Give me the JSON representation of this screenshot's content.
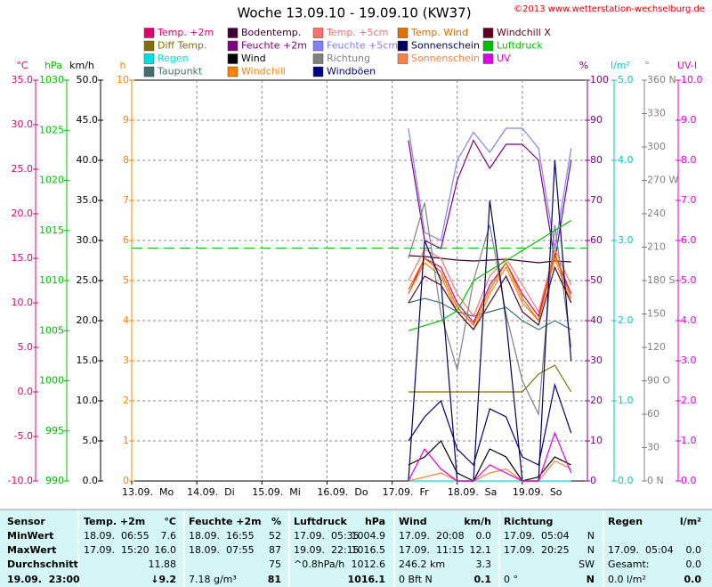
{
  "chart_data": {
    "type": "line",
    "title": "Woche 13.09.10 - 19.09.10 (KW37)",
    "copyright": "©2013 www.wetterstation-wechselburg.de",
    "xlim": [
      0,
      168
    ],
    "xticks": [
      {
        "value": 0,
        "label": "13.09.  Mo"
      },
      {
        "value": 24,
        "label": "14.09.  Di"
      },
      {
        "value": 48,
        "label": "15.09.  Mi"
      },
      {
        "value": 72,
        "label": "16.09.  Do"
      },
      {
        "value": 96,
        "label": "17.09.  Fr"
      },
      {
        "value": 120,
        "label": "18.09.  Sa"
      },
      {
        "value": 144,
        "label": "19.09.  So"
      }
    ],
    "grid": true,
    "grid_axis": "y4",
    "y_axes": [
      {
        "id": "y1",
        "label": "°C",
        "color": "#e0007a",
        "ylim": [
          -10,
          35
        ],
        "yticks": [
          {
            "value": -10,
            "label": "-10.0"
          },
          {
            "value": -5,
            "label": "-5.0"
          },
          {
            "value": 0,
            "label": "0.0"
          },
          {
            "value": 5,
            "label": "5.0"
          },
          {
            "value": 10,
            "label": "10.0"
          },
          {
            "value": 15,
            "label": "15.0"
          },
          {
            "value": 20,
            "label": "20.0"
          },
          {
            "value": 25,
            "label": "25.0"
          },
          {
            "value": 30,
            "label": "30.0"
          },
          {
            "value": 35,
            "label": "35.0"
          }
        ]
      },
      {
        "id": "y2",
        "label": "hPa",
        "color": "#00c000",
        "ylim": [
          990,
          1030
        ],
        "yticks": [
          990,
          995,
          1000,
          1005,
          1010,
          1015,
          1020,
          1025,
          1030
        ]
      },
      {
        "id": "y3",
        "label": "km/h",
        "color": "#000000",
        "ylim": [
          0,
          50
        ],
        "yticks": [
          {
            "value": 0,
            "label": "0.0"
          },
          {
            "value": 5,
            "label": "5.0"
          },
          {
            "value": 10,
            "label": "10.0"
          },
          {
            "value": 15,
            "label": "15.0"
          },
          {
            "value": 20,
            "label": "20.0"
          },
          {
            "value": 25,
            "label": "25.0"
          },
          {
            "value": 30,
            "label": "30.0"
          },
          {
            "value": 35,
            "label": "35.0"
          },
          {
            "value": 40,
            "label": "40.0"
          },
          {
            "value": 45,
            "label": "45.0"
          },
          {
            "value": 50,
            "label": "50.0"
          }
        ]
      },
      {
        "id": "y4",
        "label": "h",
        "color": "#ff8000",
        "ylim": [
          0,
          10
        ],
        "yticks": [
          0,
          1,
          2,
          3,
          4,
          5,
          6,
          7,
          8,
          9,
          10
        ]
      },
      {
        "id": "y5",
        "label": "%",
        "color": "#800080",
        "ylim": [
          0,
          100
        ],
        "yticks": [
          0,
          10,
          20,
          30,
          40,
          50,
          60,
          70,
          80,
          90,
          100
        ]
      },
      {
        "id": "y6",
        "label": "l/m²",
        "color": "#00c8c8",
        "ylim": [
          0,
          5
        ],
        "yticks": [
          {
            "value": 0,
            "label": "0.0"
          },
          {
            "value": 1,
            "label": "1.0"
          },
          {
            "value": 2,
            "label": "2.0"
          },
          {
            "value": 3,
            "label": "3.0"
          },
          {
            "value": 4,
            "label": "4.0"
          },
          {
            "value": 5,
            "label": "5.0"
          }
        ]
      },
      {
        "id": "y7",
        "label": "°",
        "color": "#808080",
        "ylim": [
          0,
          360
        ],
        "yticks": [
          {
            "value": 0,
            "label": "0 N"
          },
          30,
          60,
          {
            "value": 90,
            "label": "90 O"
          },
          120,
          150,
          {
            "value": 180,
            "label": "180 S"
          },
          210,
          240,
          {
            "value": 270,
            "label": "270 W"
          },
          300,
          330,
          {
            "value": 360,
            "label": "360 N"
          }
        ]
      },
      {
        "id": "y8",
        "label": "UV-I",
        "color": "#e000e0",
        "ylim": [
          0,
          10
        ],
        "yticks": [
          {
            "value": 0,
            "label": "0.0"
          },
          {
            "value": 1,
            "label": "1.0"
          },
          {
            "value": 2,
            "label": "2.0"
          },
          {
            "value": 3,
            "label": "3.0"
          },
          {
            "value": 4,
            "label": "4.0"
          },
          {
            "value": 5,
            "label": "5.0"
          },
          {
            "value": 6,
            "label": "6.0"
          },
          {
            "value": 7,
            "label": "7.0"
          },
          {
            "value": 8,
            "label": "8.0"
          },
          {
            "value": 9,
            "label": "9.0"
          },
          {
            "value": 10,
            "label": "10.0"
          }
        ]
      }
    ],
    "reference_line": {
      "axis": "y2",
      "value": 1013.25,
      "color": "#00c000"
    },
    "x": [
      96,
      102,
      108,
      114,
      120,
      126,
      132,
      138,
      144,
      150,
      156,
      162,
      168
    ],
    "series": [
      {
        "name": "Temp. +2m",
        "color": "#e0006e",
        "axis": "y1",
        "values": [
          null,
          11,
          15,
          14,
          10,
          7.8,
          12,
          14.5,
          11,
          8.5,
          15.5,
          11,
          null
        ]
      },
      {
        "name": "Diff Temp.",
        "color": "#807000",
        "axis": "y1",
        "values": [
          null,
          0,
          0,
          0,
          0,
          0,
          0,
          0,
          0,
          2,
          3,
          0,
          null
        ]
      },
      {
        "name": "Regen",
        "color": "#00e0e0",
        "axis": "y6",
        "values": [
          null,
          0,
          0,
          0,
          0,
          0,
          0,
          0,
          0,
          0,
          0,
          0,
          null
        ]
      },
      {
        "name": "Taupunkt",
        "color": "#407070",
        "axis": "y1",
        "values": [
          null,
          10,
          10.5,
          10,
          9,
          8.5,
          9,
          9.5,
          8,
          7,
          8,
          7,
          null
        ]
      },
      {
        "name": "Bodentemp.",
        "color": "#400030",
        "axis": "y1",
        "values": [
          null,
          15.3,
          15.2,
          15,
          14.8,
          14.7,
          14.8,
          14.9,
          14.7,
          14.5,
          14.7,
          14.6,
          null
        ]
      },
      {
        "name": "Feuchte +2m",
        "color": "#800080",
        "axis": "y5",
        "values": [
          null,
          85,
          60,
          58,
          75,
          85,
          78,
          84,
          84,
          80,
          55,
          80,
          null
        ]
      },
      {
        "name": "Wind",
        "color": "#000000",
        "axis": "y3",
        "values": [
          null,
          2,
          3,
          5,
          1,
          0,
          4,
          3,
          0,
          0.5,
          3,
          2,
          null
        ]
      },
      {
        "name": "Windchill",
        "color": "#ff8000",
        "axis": "y1",
        "values": [
          null,
          11,
          14.5,
          13,
          9,
          7,
          11,
          14,
          10,
          8,
          15,
          10,
          null
        ]
      },
      {
        "name": "Temp. +5cm",
        "color": "#ff7070",
        "axis": "y1",
        "values": [
          null,
          12.5,
          16,
          15,
          11,
          8.5,
          13,
          15,
          12,
          9,
          16,
          12,
          null
        ]
      },
      {
        "name": "Feuchte +5cm",
        "color": "#8080ff",
        "axis": "y5",
        "values": [
          null,
          88,
          62,
          60,
          80,
          87,
          82,
          88,
          88,
          83,
          58,
          83,
          null
        ]
      },
      {
        "name": "Richtung",
        "color": "#808080",
        "axis": "y7",
        "values": [
          null,
          200,
          250,
          150,
          100,
          180,
          230,
          150,
          90,
          60,
          230,
          120,
          null
        ]
      },
      {
        "name": "Windböen",
        "color": "#000080",
        "axis": "y3",
        "values": [
          null,
          5,
          8,
          10,
          4,
          2,
          9,
          8,
          3,
          2,
          12,
          6,
          null
        ]
      },
      {
        "name": "Temp. Wind",
        "color": "#e07000",
        "axis": "y1",
        "values": [
          null,
          11.5,
          15,
          13.5,
          9.5,
          7.5,
          11.5,
          14.5,
          10.5,
          8,
          15.5,
          10.5,
          null
        ]
      },
      {
        "name": "Sonnenschein",
        "color": "#000060",
        "axis": "y4",
        "values": [
          null,
          0,
          6,
          5,
          0,
          0,
          7,
          4,
          0,
          0,
          8,
          3,
          null
        ]
      },
      {
        "name": "Sonnenschein",
        "color": "#ff8040",
        "axis": "y4",
        "values": [
          null,
          0,
          0.1,
          0.2,
          0,
          0,
          0.2,
          0.3,
          0,
          0,
          0.5,
          0.3,
          null
        ]
      },
      {
        "name": "Windchill X",
        "color": "#600020",
        "axis": "y1",
        "values": [
          null,
          10,
          13,
          12,
          9,
          7,
          10,
          13,
          9,
          7.5,
          14,
          10,
          null
        ]
      },
      {
        "name": "Luftdruck",
        "color": "#00c000",
        "axis": "y2",
        "values": [
          null,
          1005,
          1005.5,
          1006,
          1007,
          1010,
          1011,
          1012,
          1013,
          1014,
          1015,
          1016,
          null
        ]
      },
      {
        "name": "UV",
        "color": "#e000e0",
        "axis": "y8",
        "values": [
          null,
          0,
          0.8,
          0.3,
          0,
          0,
          0.4,
          0.2,
          0,
          0,
          1.2,
          0.2,
          null
        ]
      }
    ]
  },
  "table": {
    "rows": [
      [
        "Sensor",
        "Temp. +2m",
        "°C",
        "Feuchte +2m",
        "%",
        "Luftdruck",
        "hPa",
        "Wind",
        "km/h",
        "Richtung",
        null,
        "Regen",
        "l/m²"
      ],
      [
        "MinWert",
        "18.09.  06:55",
        "7.6",
        "18.09.  16:55",
        "52",
        "17.09.  05:35",
        "1004.9",
        "17.09.  20:08",
        "0.0",
        "17.09.  05:04",
        "N",
        null,
        null
      ],
      [
        "MaxWert",
        "17.09.  15:20",
        "16.0",
        "18.09.  07:55",
        "87",
        "19.09.  22:15",
        "1016.5",
        "17.09.  11:15",
        "12.1",
        "17.09.  20:25",
        "N",
        "17.09.  05:04",
        "0.0"
      ],
      [
        "Durchschnitt",
        null,
        "11.88",
        null,
        "75",
        "^0.8hPa/h",
        "1012.6",
        "246.2 km",
        "3.3",
        null,
        "SW",
        "Gesamt:",
        "0.0"
      ],
      [
        "19.09.  23:00",
        null,
        "↓9.2",
        "7.18 g/m³",
        "81",
        null,
        "1016.1",
        "0 Bft N",
        "0.1",
        "0 °",
        "N",
        "0.0 l/m²",
        "0.0"
      ]
    ]
  }
}
